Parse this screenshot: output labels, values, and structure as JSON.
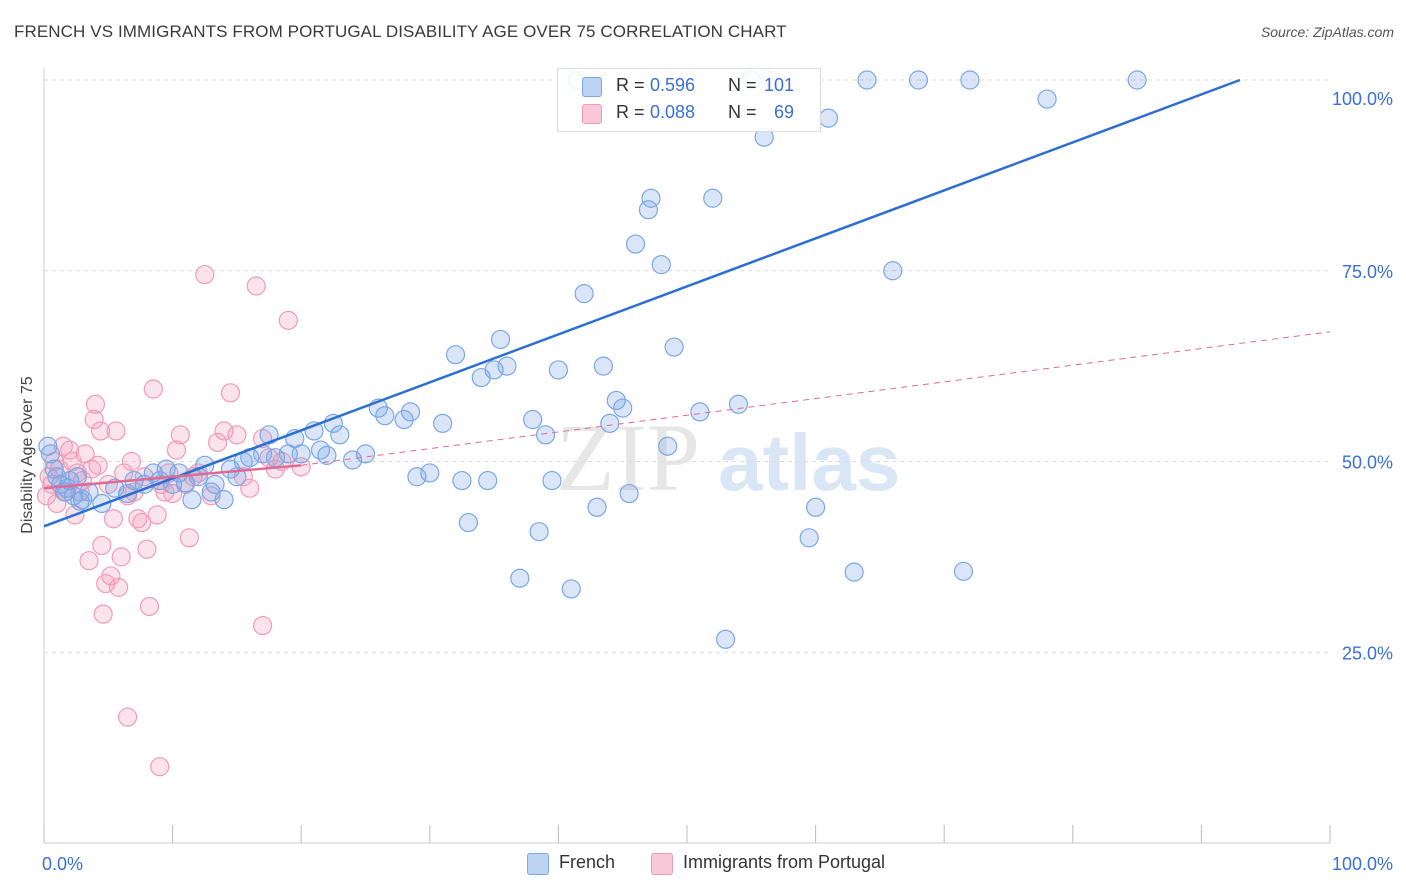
{
  "title": "FRENCH VS IMMIGRANTS FROM PORTUGAL DISABILITY AGE OVER 75 CORRELATION CHART",
  "source": "Source: ZipAtlas.com",
  "watermark": {
    "zip": "ZIP",
    "atlas": "atlas"
  },
  "legend_top": {
    "rows": [
      {
        "r_label": "R =",
        "r_value": "0.596",
        "n_label": "N =",
        "n_value": "101",
        "color": "#7aa7e6"
      },
      {
        "r_label": "R =",
        "r_value": "0.088",
        "n_label": "N =",
        "n_value": "69",
        "color": "#f29bb8"
      }
    ]
  },
  "legend_bottom": [
    {
      "label": "French",
      "color": "#7aa7e6"
    },
    {
      "label": "Immigrants from Portugal",
      "color": "#f29bb8"
    }
  ],
  "chart_data": {
    "type": "scatter",
    "title": "FRENCH VS IMMIGRANTS FROM PORTUGAL DISABILITY AGE OVER 75 CORRELATION CHART",
    "xlabel": "",
    "ylabel": "Disability Age Over 75",
    "xlim": [
      0,
      100
    ],
    "ylim": [
      0,
      100
    ],
    "x_tick_labels": [
      "0.0%",
      "100.0%"
    ],
    "y_ticks": [
      25,
      50,
      75,
      100
    ],
    "y_tick_labels": [
      "25.0%",
      "50.0%",
      "75.0%",
      "100.0%"
    ],
    "grid": true,
    "legend_position": "top-center",
    "series": [
      {
        "name": "French",
        "color": "#7aa7e6",
        "line_color": "#2d6fd1",
        "trend": {
          "x": [
            0,
            93
          ],
          "y": [
            41.5,
            100
          ]
        },
        "points": [
          [
            0.3,
            52
          ],
          [
            0.5,
            51
          ],
          [
            0.8,
            49
          ],
          [
            1,
            48
          ],
          [
            1.3,
            47
          ],
          [
            1.6,
            46
          ],
          [
            2,
            47.5
          ],
          [
            2.3,
            45.5
          ],
          [
            2.6,
            48
          ],
          [
            3,
            45
          ],
          [
            3.5,
            46
          ],
          [
            4.5,
            44.5
          ],
          [
            5.5,
            46.5
          ],
          [
            6.5,
            45.8
          ],
          [
            7,
            47.5
          ],
          [
            7.8,
            47
          ],
          [
            8.5,
            48.5
          ],
          [
            9,
            47.5
          ],
          [
            9.5,
            49
          ],
          [
            10,
            47
          ],
          [
            10.5,
            48.5
          ],
          [
            11,
            47.2
          ],
          [
            11.5,
            45
          ],
          [
            12,
            48
          ],
          [
            12.5,
            49.5
          ],
          [
            13,
            46
          ],
          [
            13.3,
            47
          ],
          [
            14,
            45
          ],
          [
            14.5,
            49
          ],
          [
            15,
            48
          ],
          [
            15.5,
            50
          ],
          [
            16,
            50.5
          ],
          [
            17,
            51
          ],
          [
            17.5,
            53.5
          ],
          [
            18,
            50.5
          ],
          [
            19,
            51
          ],
          [
            19.5,
            53
          ],
          [
            20,
            51
          ],
          [
            21,
            54
          ],
          [
            22,
            50.8
          ],
          [
            22.5,
            55
          ],
          [
            23,
            53.5
          ],
          [
            24,
            50.2
          ],
          [
            25,
            51
          ],
          [
            21.5,
            51.5
          ],
          [
            26,
            57
          ],
          [
            26.5,
            56
          ],
          [
            28,
            55.5
          ],
          [
            28.5,
            56.5
          ],
          [
            29,
            48
          ],
          [
            30,
            48.5
          ],
          [
            31,
            55
          ],
          [
            32,
            64
          ],
          [
            32.5,
            47.5
          ],
          [
            33,
            42
          ],
          [
            34,
            61
          ],
          [
            34.5,
            47.5
          ],
          [
            35,
            62
          ],
          [
            35.5,
            66
          ],
          [
            36,
            62.5
          ],
          [
            37,
            34.7
          ],
          [
            38,
            55.5
          ],
          [
            38.5,
            40.8
          ],
          [
            39,
            53.5
          ],
          [
            39.5,
            47.5
          ],
          [
            40,
            62
          ],
          [
            41,
            33.3
          ],
          [
            41.5,
            100
          ],
          [
            42,
            72
          ],
          [
            43,
            44
          ],
          [
            43.5,
            62.5
          ],
          [
            44,
            55
          ],
          [
            44.5,
            58
          ],
          [
            45,
            57
          ],
          [
            45.5,
            45.8
          ],
          [
            46,
            78.5
          ],
          [
            47,
            83
          ],
          [
            47.2,
            84.5
          ],
          [
            48,
            75.8
          ],
          [
            48.5,
            52
          ],
          [
            49,
            65
          ],
          [
            51,
            56.5
          ],
          [
            52,
            84.5
          ],
          [
            53,
            26.7
          ],
          [
            54,
            57.5
          ],
          [
            56,
            92.5
          ],
          [
            56.5,
            100
          ],
          [
            60,
            44
          ],
          [
            59.5,
            40
          ],
          [
            61,
            95
          ],
          [
            63,
            35.5
          ],
          [
            64,
            100
          ],
          [
            66,
            75
          ],
          [
            55,
            100
          ],
          [
            68,
            100
          ],
          [
            71.5,
            35.6
          ],
          [
            72,
            100
          ],
          [
            78,
            97.5
          ],
          [
            85,
            100
          ],
          [
            1.8,
            46.5
          ],
          [
            2.8,
            44.8
          ]
        ]
      },
      {
        "name": "Immigrants from Portugal",
        "color": "#f29bb8",
        "line_color": "#e06a94",
        "trend": {
          "x": [
            0,
            20
          ],
          "y": [
            46.5,
            49.5
          ]
        },
        "trend_dashed": {
          "x": [
            20,
            100
          ],
          "y": [
            49.5,
            67
          ]
        },
        "points": [
          [
            0.2,
            45.5
          ],
          [
            0.4,
            48
          ],
          [
            0.6,
            47
          ],
          [
            0.8,
            50
          ],
          [
            1,
            44.5
          ],
          [
            1.2,
            49
          ],
          [
            1.5,
            52
          ],
          [
            1.7,
            46
          ],
          [
            2,
            51.5
          ],
          [
            2.2,
            50
          ],
          [
            2.4,
            43
          ],
          [
            2.6,
            48.5
          ],
          [
            2.8,
            46
          ],
          [
            3,
            47.5
          ],
          [
            3.2,
            51
          ],
          [
            3.5,
            37
          ],
          [
            3.7,
            49
          ],
          [
            3.9,
            55.5
          ],
          [
            4,
            57.5
          ],
          [
            4.2,
            49.5
          ],
          [
            4.4,
            54
          ],
          [
            4.5,
            39
          ],
          [
            4.6,
            30
          ],
          [
            4.8,
            34
          ],
          [
            5,
            47
          ],
          [
            5.2,
            35
          ],
          [
            5.4,
            42.5
          ],
          [
            5.6,
            54
          ],
          [
            5.8,
            33.5
          ],
          [
            6,
            37.5
          ],
          [
            6.2,
            48.5
          ],
          [
            6.5,
            45.5
          ],
          [
            6.8,
            50
          ],
          [
            7,
            46
          ],
          [
            7.3,
            42.5
          ],
          [
            7.6,
            42
          ],
          [
            7.8,
            48
          ],
          [
            8,
            38.5
          ],
          [
            8.2,
            31
          ],
          [
            8.5,
            59.5
          ],
          [
            8.8,
            43
          ],
          [
            9.1,
            47
          ],
          [
            9.4,
            46
          ],
          [
            9.7,
            48.5
          ],
          [
            10,
            45.8
          ],
          [
            10.3,
            51.5
          ],
          [
            10.6,
            53.5
          ],
          [
            11,
            47
          ],
          [
            11.3,
            40
          ],
          [
            11.6,
            48
          ],
          [
            12,
            48.5
          ],
          [
            12.5,
            74.5
          ],
          [
            13,
            45.5
          ],
          [
            13.5,
            52.5
          ],
          [
            14,
            54
          ],
          [
            14.5,
            59
          ],
          [
            15,
            53.5
          ],
          [
            15.5,
            48
          ],
          [
            16,
            46.5
          ],
          [
            16.5,
            73
          ],
          [
            17,
            53
          ],
          [
            17.5,
            50.5
          ],
          [
            18,
            49
          ],
          [
            18.5,
            50
          ],
          [
            19,
            68.5
          ],
          [
            20,
            49.3
          ],
          [
            6.5,
            16.5
          ],
          [
            9,
            10
          ],
          [
            17,
            28.5
          ]
        ]
      }
    ]
  }
}
